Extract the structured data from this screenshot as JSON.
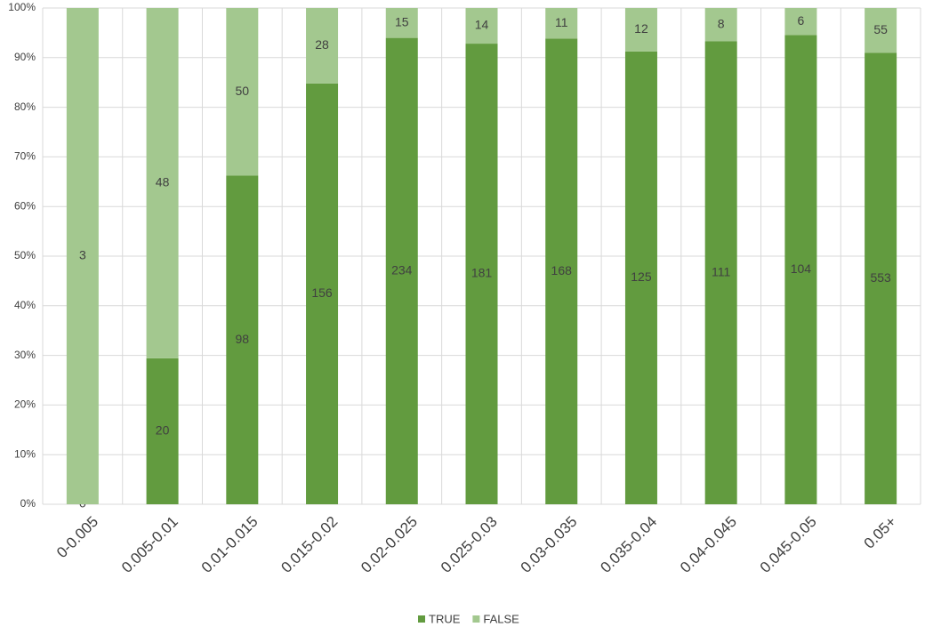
{
  "chart_data": {
    "type": "bar",
    "stacking": "percent",
    "categories": [
      "0-0.005",
      "0.005-0.01",
      "0.01-0.015",
      "0.015-0.02",
      "0.02-0.025",
      "0.025-0.03",
      "0.03-0.035",
      "0.035-0.04",
      "0.04-0.045",
      "0.045-0.05",
      "0.05+"
    ],
    "series": [
      {
        "name": "TRUE",
        "color": "#629b3f",
        "values": [
          0,
          20,
          98,
          156,
          234,
          181,
          168,
          125,
          111,
          104,
          553
        ]
      },
      {
        "name": "FALSE",
        "color": "#a3c88f",
        "values": [
          3,
          48,
          50,
          28,
          15,
          14,
          11,
          12,
          8,
          6,
          55
        ]
      }
    ],
    "ylim": [
      0,
      100
    ],
    "yticks": [
      {
        "value": 0,
        "label": "0%"
      },
      {
        "value": 10,
        "label": "10%"
      },
      {
        "value": 20,
        "label": "20%"
      },
      {
        "value": 30,
        "label": "30%"
      },
      {
        "value": 40,
        "label": "40%"
      },
      {
        "value": 50,
        "label": "50%"
      },
      {
        "value": 60,
        "label": "60%"
      },
      {
        "value": 70,
        "label": "70%"
      },
      {
        "value": 80,
        "label": "80%"
      },
      {
        "value": 90,
        "label": "90%"
      },
      {
        "value": 100,
        "label": "100%"
      }
    ],
    "grid": true,
    "legend": "bottom"
  }
}
